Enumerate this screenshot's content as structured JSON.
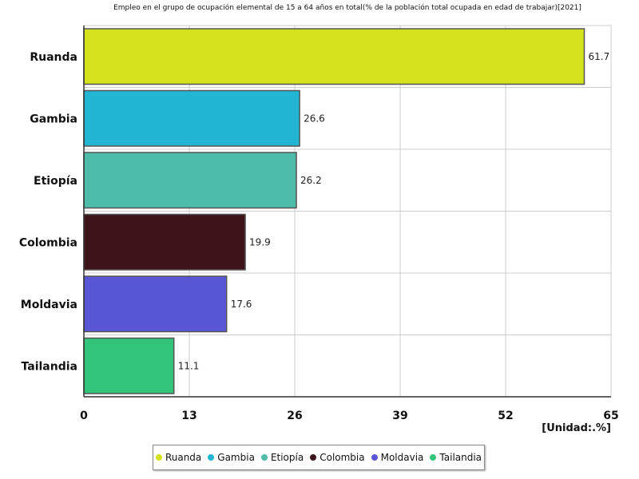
{
  "chart_data": {
    "type": "bar",
    "orientation": "horizontal",
    "title": "Empleo en el grupo de ocupación elemental de 15 a 64 años en total(% de la población total ocupada en edad de trabajar)[2021]",
    "categories": [
      "Ruanda",
      "Gambia",
      "Etiopía",
      "Colombia",
      "Moldavia",
      "Tailandia"
    ],
    "values": [
      61.7,
      26.6,
      26.2,
      19.9,
      17.6,
      11.1
    ],
    "value_labels": [
      "61.7",
      "26.6",
      "26.2",
      "19.9",
      "17.6",
      "11.1"
    ],
    "colors": [
      "#d4e21b",
      "#22b6d4",
      "#4fbba9",
      "#3e141b",
      "#5856d5",
      "#33c47b"
    ],
    "xlim": [
      0,
      65
    ],
    "x_ticks": [
      "0",
      "13",
      "26",
      "39",
      "52",
      "65"
    ],
    "unit_label": "[Unidad:.%]",
    "grid": true,
    "legend_position": "bottom"
  }
}
